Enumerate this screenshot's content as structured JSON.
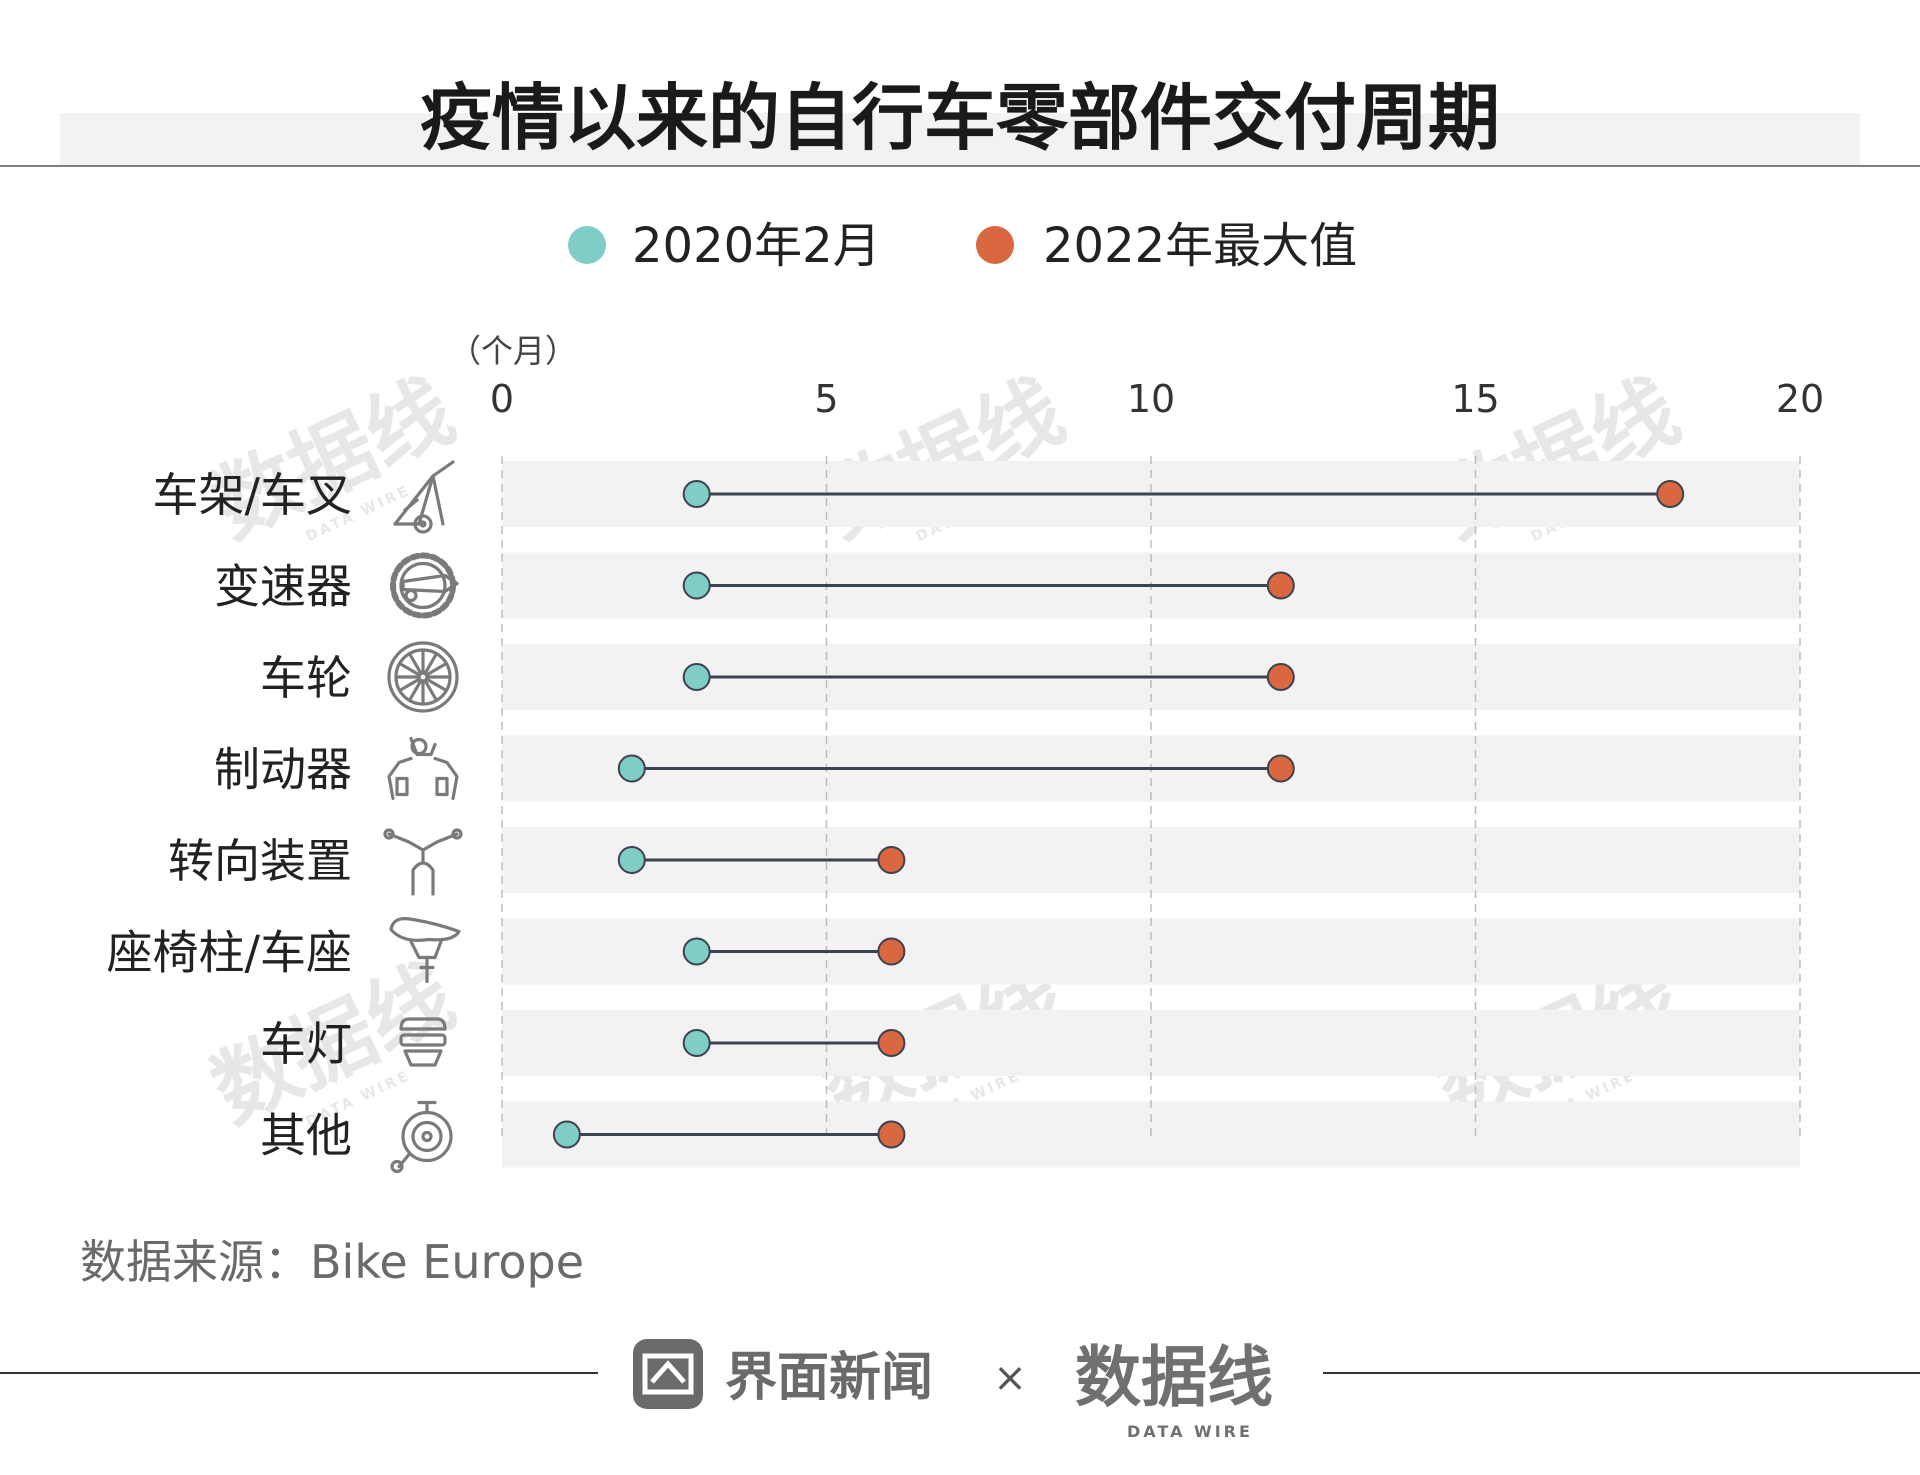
{
  "chart_data": {
    "type": "dumbbell",
    "title": "疫情以来的自行车零部件交付周期",
    "unit_label": "（个月）",
    "x_ticks": [
      0,
      5,
      10,
      15,
      20
    ],
    "xlim": [
      0,
      20
    ],
    "grid": true,
    "legend_position": "top-center",
    "series": [
      {
        "name": "2020年2月",
        "color": "#7fcdc7"
      },
      {
        "name": "2022年最大值",
        "color": "#d9673f"
      }
    ],
    "categories": [
      {
        "label": "车架/车叉",
        "icon": "bike-frame-icon",
        "start": 3,
        "end": 18
      },
      {
        "label": "变速器",
        "icon": "derailleur-icon",
        "start": 3,
        "end": 12
      },
      {
        "label": "车轮",
        "icon": "wheel-icon",
        "start": 3,
        "end": 12
      },
      {
        "label": "制动器",
        "icon": "brake-icon",
        "start": 2,
        "end": 12
      },
      {
        "label": "转向装置",
        "icon": "handlebar-icon",
        "start": 2,
        "end": 6
      },
      {
        "label": "座椅柱/车座",
        "icon": "saddle-icon",
        "start": 3,
        "end": 6
      },
      {
        "label": "车灯",
        "icon": "bike-light-icon",
        "start": 3,
        "end": 6
      },
      {
        "label": "其他",
        "icon": "bell-icon",
        "start": 1,
        "end": 6
      }
    ]
  },
  "source": "数据来源：Bike Europe",
  "footer": {
    "brand1": "界面新闻",
    "separator": "×",
    "brand2": "数据线",
    "brand2_sub": "DATA WIRE"
  },
  "watermark": {
    "main": "数据线",
    "sub": "DATA WIRE"
  },
  "colors": {
    "row_band": "#f2f2f2",
    "connector": "#3d4250",
    "icon": "#7a7a7a",
    "grid": "#bdbdbd"
  }
}
